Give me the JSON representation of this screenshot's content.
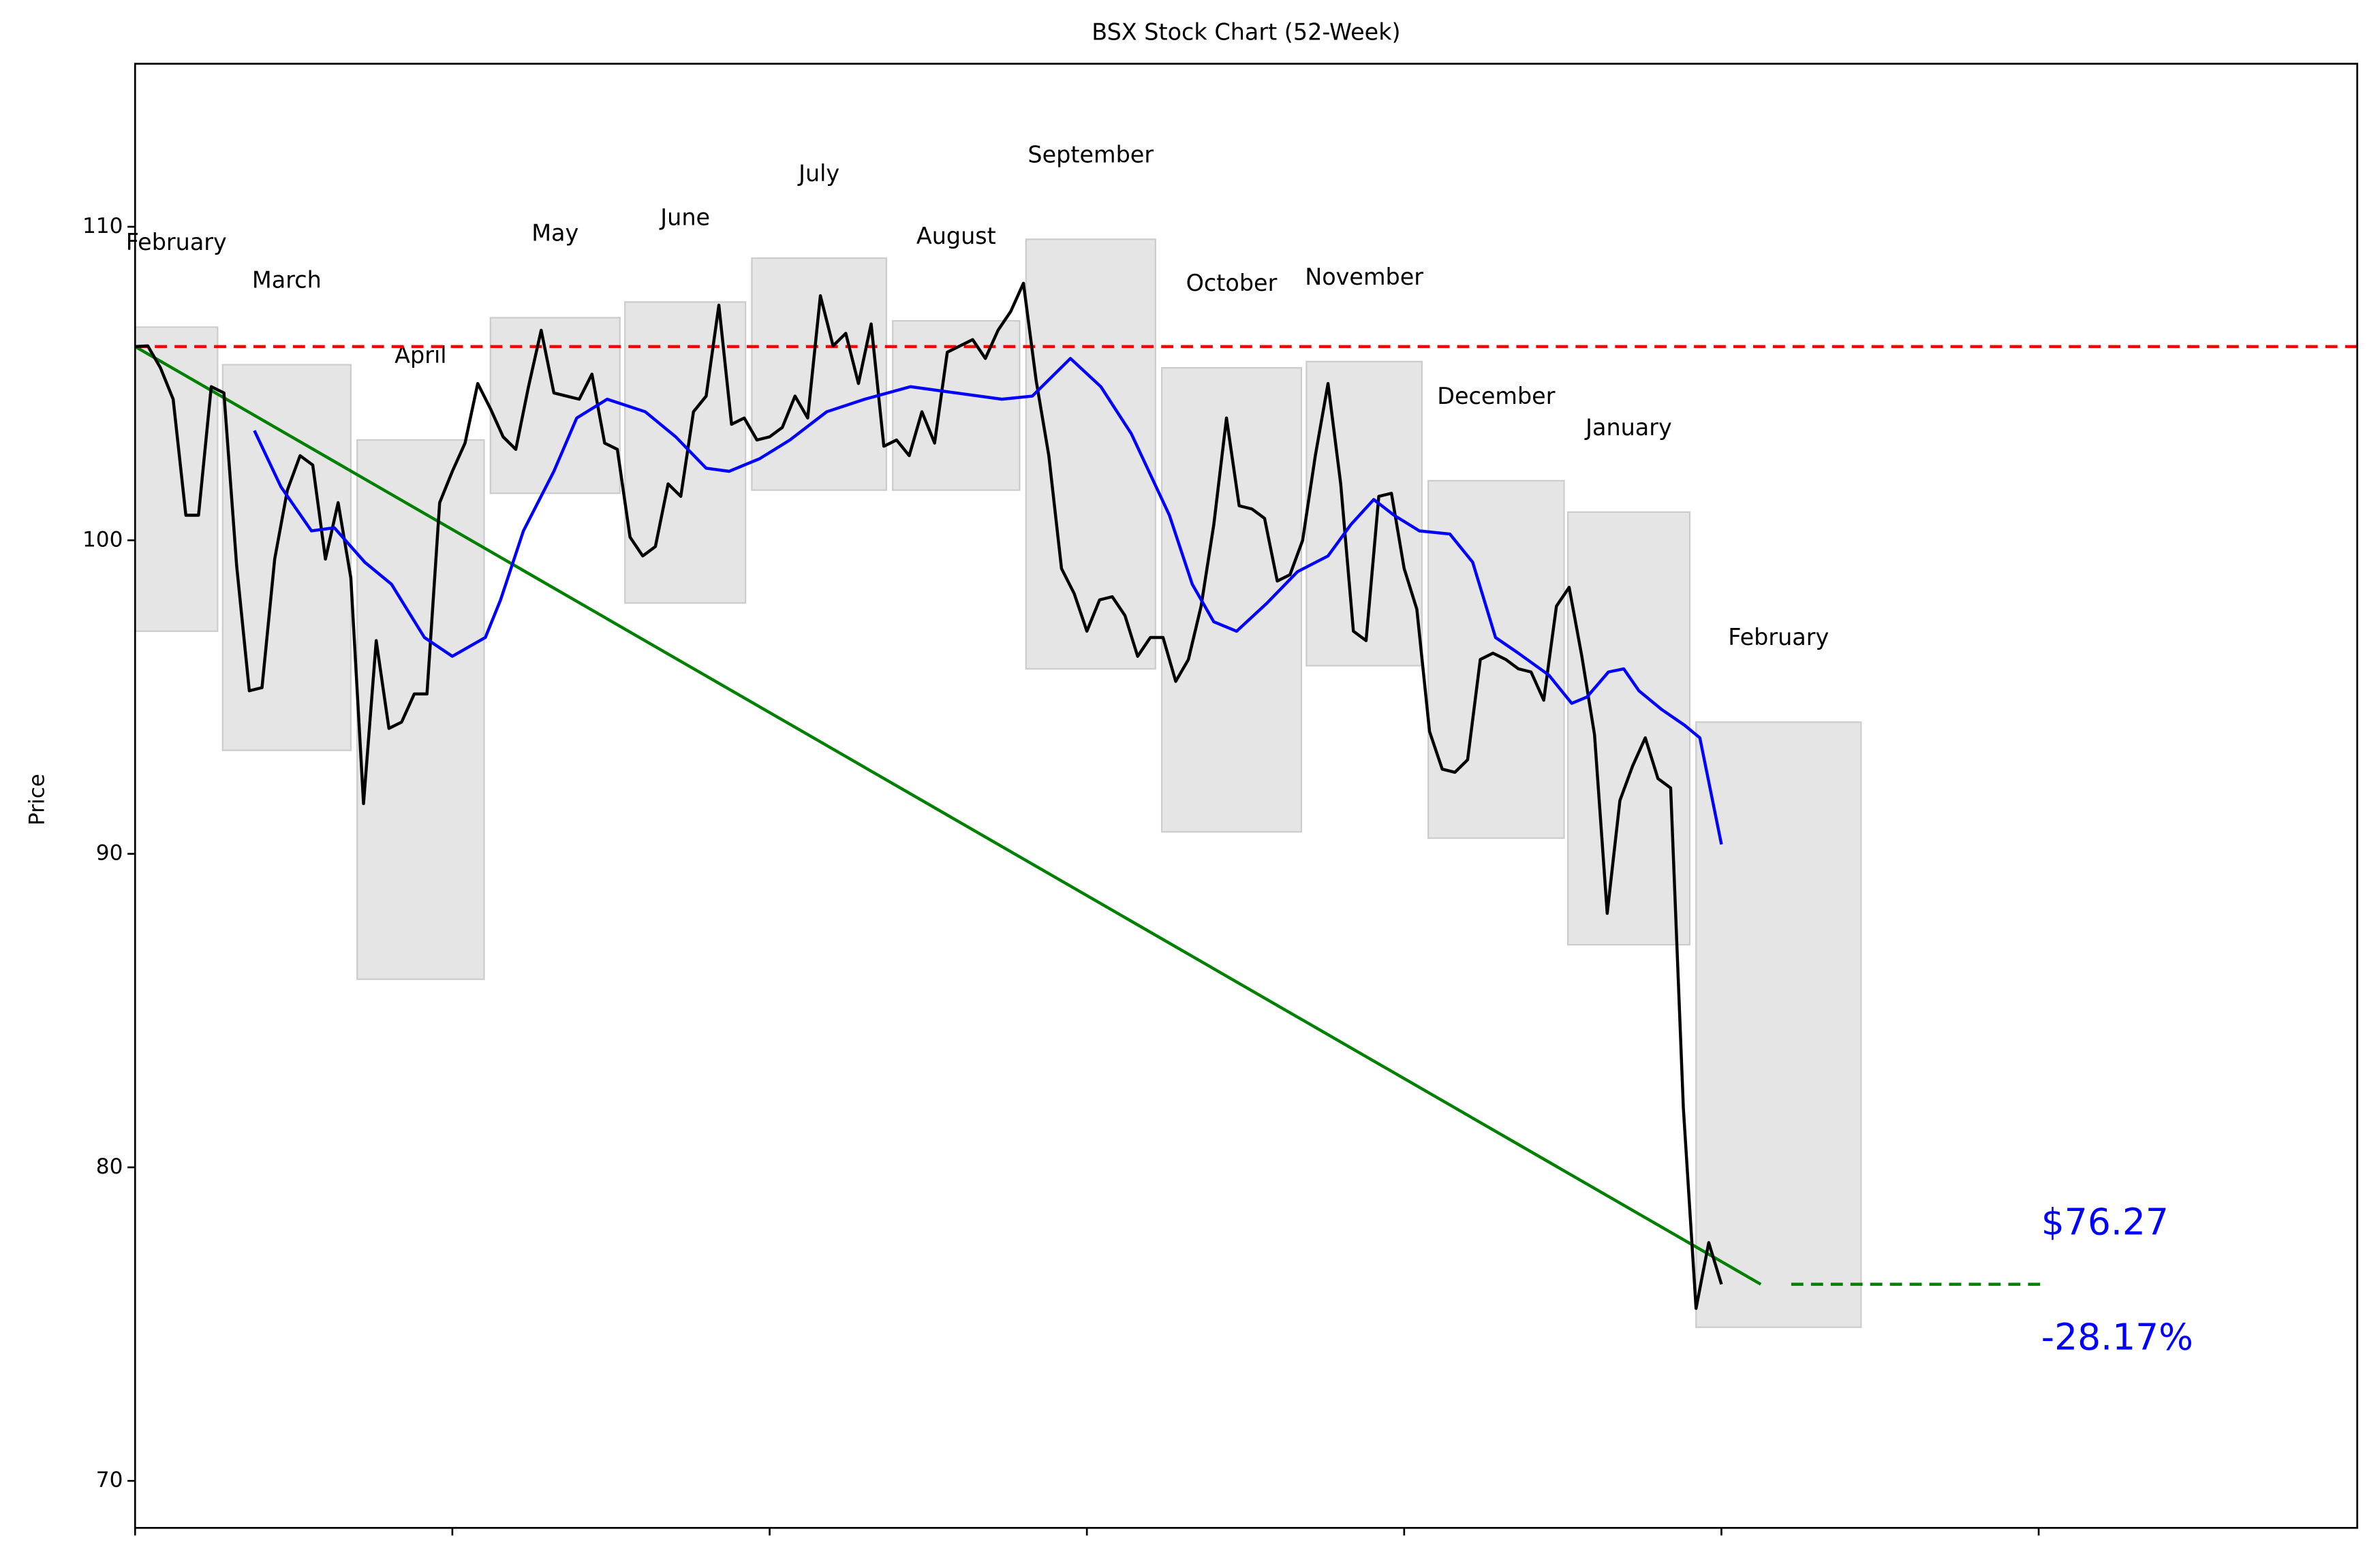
{
  "chart_data": {
    "type": "line",
    "title": "BSX Stock Chart (52-Week)",
    "ylabel": "Price",
    "xlim": [
      0,
      175.1
    ],
    "xticks": [
      0,
      25,
      50,
      75,
      100,
      125,
      150
    ],
    "ylim": [
      68.5,
      115.2
    ],
    "yticks": [
      70,
      80,
      90,
      100,
      110
    ],
    "series": [
      {
        "color": "#000000",
        "values": [
          106.18,
          106.2,
          105.5,
          104.5,
          100.8,
          100.8,
          104.9,
          104.7,
          99.2,
          95.2,
          95.3,
          99.4,
          101.6,
          102.7,
          102.4,
          99.4,
          101.2,
          98.8,
          91.6,
          96.8,
          94.0,
          94.2,
          95.1,
          95.1,
          101.2,
          102.2,
          103.1,
          105.0,
          104.2,
          103.3,
          102.9,
          104.9,
          106.7,
          104.7,
          104.6,
          104.5,
          105.3,
          103.1,
          102.9,
          100.1,
          99.5,
          99.8,
          101.8,
          101.4,
          104.1,
          104.6,
          107.5,
          103.7,
          103.9,
          103.2,
          103.3,
          103.6,
          104.6,
          103.9,
          107.8,
          106.2,
          106.6,
          105.0,
          106.9,
          103.0,
          103.2,
          102.7,
          104.1,
          103.1,
          106.0,
          106.2,
          106.4,
          105.8,
          106.7,
          107.3,
          108.2,
          105.1,
          102.7,
          99.1,
          98.3,
          97.1,
          98.1,
          98.2,
          97.6,
          96.3,
          96.9,
          96.9,
          95.5,
          96.2,
          97.9,
          100.5,
          103.9,
          101.1,
          101.0,
          100.7,
          98.7,
          98.9,
          100.0,
          102.7,
          105.0,
          101.8,
          97.1,
          96.8,
          101.4,
          101.5,
          99.1,
          97.8,
          93.9,
          92.7,
          92.6,
          93.0,
          96.2,
          96.4,
          96.2,
          95.9,
          95.8,
          94.9,
          97.9,
          98.5,
          96.3,
          93.8,
          88.1,
          91.7,
          92.8,
          93.7,
          92.4,
          92.1,
          81.9,
          75.5,
          77.6,
          76.27
        ]
      },
      {
        "color": "#0000ff",
        "x": [
          9.4,
          11.5,
          13.9,
          15.7,
          18.1,
          20.2,
          22.8,
          25.0,
          27.6,
          28.8,
          30.6,
          33.0,
          34.8,
          37.2,
          40.2,
          42.6,
          45.0,
          46.8,
          49.2,
          51.6,
          54.5,
          57.5,
          61.1,
          64.7,
          68.3,
          70.7,
          73.7,
          76.1,
          78.5,
          81.5,
          83.3,
          85.0,
          86.8,
          89.2,
          91.6,
          94.0,
          95.8,
          97.6,
          99.2,
          101.2,
          103.6,
          105.4,
          107.2,
          109.0,
          111.4,
          113.2,
          114.4,
          116.1,
          117.3,
          118.5,
          120.3,
          122.1,
          123.3,
          125.0
        ],
        "values": [
          103.5,
          101.7,
          100.3,
          100.4,
          99.3,
          98.6,
          96.9,
          96.3,
          96.9,
          98.1,
          100.3,
          102.2,
          103.9,
          104.5,
          104.1,
          103.3,
          102.3,
          102.2,
          102.6,
          103.2,
          104.1,
          104.5,
          104.9,
          104.7,
          104.5,
          104.6,
          105.8,
          104.9,
          103.4,
          100.8,
          98.6,
          97.4,
          97.1,
          98.0,
          99.0,
          99.5,
          100.5,
          101.3,
          100.8,
          100.3,
          100.2,
          99.3,
          96.9,
          96.4,
          95.7,
          94.8,
          95.0,
          95.8,
          95.9,
          95.2,
          94.6,
          94.1,
          93.7,
          90.3
        ]
      }
    ],
    "trend_line": {
      "color": "#008000",
      "x": [
        0,
        128.1
      ],
      "values": [
        106.18,
        76.27
      ]
    },
    "projection": {
      "color": "#008000",
      "x": [
        130.5,
        150.2
      ],
      "values": [
        76.27,
        76.27
      ]
    },
    "reference_line": {
      "color": "#ff0000",
      "value": 106.18
    },
    "months": [
      {
        "label": "February",
        "x": [
          0,
          6.5
        ],
        "y": [
          97.1,
          106.8
        ]
      },
      {
        "label": "March",
        "x": [
          6.9,
          17.0
        ],
        "y": [
          93.3,
          105.6
        ]
      },
      {
        "label": "April",
        "x": [
          17.5,
          27.5
        ],
        "y": [
          86.0,
          103.2
        ]
      },
      {
        "label": "May",
        "x": [
          28.0,
          38.2
        ],
        "y": [
          101.5,
          107.1
        ]
      },
      {
        "label": "June",
        "x": [
          38.6,
          48.1
        ],
        "y": [
          98.0,
          107.6
        ]
      },
      {
        "label": "July",
        "x": [
          48.6,
          59.2
        ],
        "y": [
          101.6,
          109.0
        ]
      },
      {
        "label": "August",
        "x": [
          59.7,
          69.7
        ],
        "y": [
          101.6,
          107.0
        ]
      },
      {
        "label": "September",
        "x": [
          70.2,
          80.4
        ],
        "y": [
          95.9,
          109.6
        ]
      },
      {
        "label": "October",
        "x": [
          80.9,
          91.9
        ],
        "y": [
          90.7,
          105.5
        ]
      },
      {
        "label": "November",
        "x": [
          92.3,
          101.4
        ],
        "y": [
          96.0,
          105.7
        ]
      },
      {
        "label": "December",
        "x": [
          101.9,
          112.6
        ],
        "y": [
          90.5,
          101.9
        ]
      },
      {
        "label": "January",
        "x": [
          112.9,
          122.5
        ],
        "y": [
          87.1,
          100.9
        ]
      },
      {
        "label": "February",
        "x": [
          123.0,
          136.0
        ],
        "y": [
          74.9,
          94.2
        ]
      }
    ],
    "annotations": [
      {
        "text": "$76.27",
        "color": "#0000ff"
      },
      {
        "text": "-28.17%",
        "color": "#0000ff"
      }
    ]
  }
}
